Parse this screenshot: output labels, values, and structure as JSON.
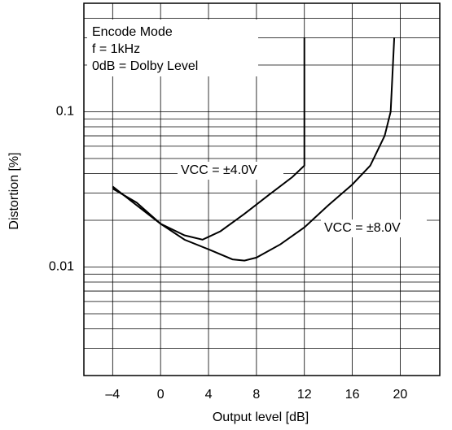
{
  "chart_data": {
    "type": "line",
    "log_y": true,
    "grid": true,
    "xlabel": "Output level [dB]",
    "ylabel": "Distortion [%]",
    "xlim": [
      -6.4,
      23.3
    ],
    "ylim": [
      0.002,
      0.5
    ],
    "xticks": [
      {
        "value": -4,
        "label": "–4"
      },
      0,
      4,
      8,
      12,
      16,
      20
    ],
    "yticks": [
      0.01,
      0.1
    ],
    "y_minor_ticks": [
      0.003,
      0.004,
      0.005,
      0.006,
      0.007,
      0.008,
      0.009,
      0.02,
      0.03,
      0.04,
      0.05,
      0.06,
      0.07,
      0.08,
      0.09,
      0.2,
      0.3,
      0.4
    ],
    "annotations": [
      "Encode Mode",
      "f = 1kHz",
      "0dB = Dolby Level"
    ],
    "series": [
      {
        "name": "VCC = ±4.0V",
        "color": "#000000",
        "x": [
          -4,
          -2,
          0,
          2,
          3.5,
          5,
          7,
          9,
          11,
          12,
          12
        ],
        "values": [
          0.032,
          0.026,
          0.019,
          0.016,
          0.015,
          0.017,
          0.022,
          0.029,
          0.038,
          0.045,
          0.3
        ]
      },
      {
        "name": "VCC = ±8.0V",
        "color": "#000000",
        "x": [
          -4,
          -2,
          0,
          2,
          4,
          6,
          7,
          8,
          10,
          12,
          14,
          16,
          17.5,
          18.7,
          19.2,
          19.5
        ],
        "values": [
          0.033,
          0.025,
          0.019,
          0.015,
          0.013,
          0.0112,
          0.011,
          0.0115,
          0.014,
          0.018,
          0.025,
          0.034,
          0.045,
          0.07,
          0.1,
          0.3
        ]
      }
    ]
  }
}
